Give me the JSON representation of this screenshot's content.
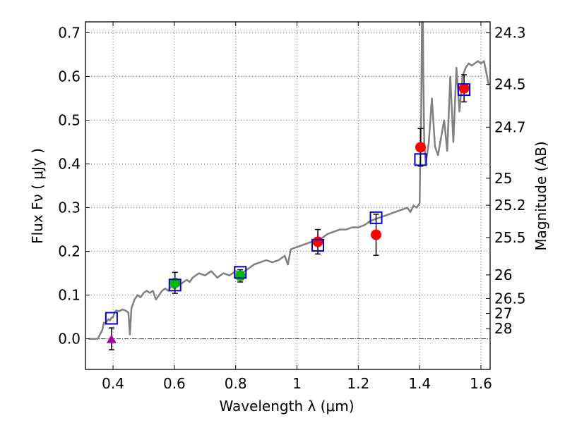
{
  "chart_data": {
    "type": "scatter",
    "xlabel": "Wavelength  λ (μm)",
    "ylabel_left": "Flux  Fν ( μJy )",
    "ylabel_right": "Magnitude (AB)",
    "xlim": [
      0.31,
      1.63
    ],
    "ylim": [
      -0.07,
      0.725
    ],
    "x_ticks": [
      0.4,
      0.6,
      0.8,
      1.0,
      1.2,
      1.4,
      1.6
    ],
    "x_tick_labels": [
      "0.4",
      "0.6",
      "0.8",
      "1",
      "1.2",
      "1.4",
      "1.6"
    ],
    "y_ticks": [
      0.0,
      0.1,
      0.2,
      0.3,
      0.4,
      0.5,
      0.6,
      0.7
    ],
    "y_tick_labels": [
      "0.0",
      "0.1",
      "0.2",
      "0.3",
      "0.4",
      "0.5",
      "0.6",
      "0.7"
    ],
    "right_ticks": [
      {
        "label": "24.3",
        "flux": 0.6998
      },
      {
        "label": "24.5",
        "flux": 0.5821
      },
      {
        "label": "24.7",
        "flux": 0.4842
      },
      {
        "label": "25",
        "flux": 0.3673
      },
      {
        "label": "25.2",
        "flux": 0.3055
      },
      {
        "label": "25.5",
        "flux": 0.2317
      },
      {
        "label": "26",
        "flux": 0.1462
      },
      {
        "label": "26.5",
        "flux": 0.0922
      },
      {
        "label": "27",
        "flux": 0.0582
      },
      {
        "label": "28",
        "flux": 0.0232
      }
    ],
    "grid": true,
    "colors": {
      "model": "#808080",
      "model_box": "#0000cc",
      "red_point": "#ff0000",
      "green_point": "#00bb00",
      "upper_limit": "#aa00aa",
      "errorbar": "#000000",
      "zero_line": "#000000"
    },
    "model_spectrum": {
      "x": [
        0.32,
        0.35,
        0.365,
        0.37,
        0.375,
        0.38,
        0.385,
        0.39,
        0.395,
        0.4,
        0.405,
        0.41,
        0.42,
        0.43,
        0.44,
        0.45,
        0.455,
        0.46,
        0.47,
        0.48,
        0.49,
        0.5,
        0.51,
        0.52,
        0.53,
        0.54,
        0.55,
        0.56,
        0.57,
        0.58,
        0.59,
        0.6,
        0.62,
        0.64,
        0.65,
        0.66,
        0.68,
        0.7,
        0.72,
        0.74,
        0.76,
        0.78,
        0.8,
        0.82,
        0.84,
        0.86,
        0.88,
        0.9,
        0.92,
        0.94,
        0.96,
        0.97,
        0.98,
        1.0,
        1.02,
        1.04,
        1.06,
        1.08,
        1.1,
        1.12,
        1.14,
        1.16,
        1.18,
        1.2,
        1.22,
        1.24,
        1.26,
        1.28,
        1.3,
        1.32,
        1.34,
        1.36,
        1.37,
        1.38,
        1.39,
        1.4,
        1.402,
        1.405,
        1.408,
        1.41,
        1.412,
        1.415,
        1.42,
        1.43,
        1.44,
        1.45,
        1.46,
        1.47,
        1.48,
        1.49,
        1.5,
        1.51,
        1.52,
        1.53,
        1.54,
        1.55,
        1.56,
        1.57,
        1.58,
        1.59,
        1.6,
        1.61,
        1.62,
        1.625
      ],
      "y": [
        0.0,
        0.0,
        0.02,
        0.037,
        0.035,
        0.04,
        0.045,
        0.042,
        0.048,
        0.05,
        0.06,
        0.065,
        0.063,
        0.067,
        0.065,
        0.06,
        0.01,
        0.07,
        0.09,
        0.1,
        0.095,
        0.105,
        0.11,
        0.105,
        0.11,
        0.09,
        0.1,
        0.11,
        0.115,
        0.11,
        0.12,
        0.115,
        0.125,
        0.135,
        0.13,
        0.14,
        0.15,
        0.145,
        0.155,
        0.14,
        0.15,
        0.145,
        0.155,
        0.15,
        0.16,
        0.17,
        0.175,
        0.18,
        0.175,
        0.18,
        0.19,
        0.17,
        0.205,
        0.21,
        0.215,
        0.22,
        0.225,
        0.23,
        0.24,
        0.245,
        0.25,
        0.25,
        0.255,
        0.255,
        0.26,
        0.27,
        0.275,
        0.28,
        0.285,
        0.29,
        0.295,
        0.3,
        0.29,
        0.305,
        0.3,
        0.31,
        0.4,
        0.5,
        0.75,
        0.78,
        0.6,
        0.45,
        0.4,
        0.45,
        0.55,
        0.44,
        0.42,
        0.46,
        0.5,
        0.43,
        0.6,
        0.45,
        0.62,
        0.52,
        0.6,
        0.62,
        0.63,
        0.625,
        0.63,
        0.635,
        0.63,
        0.635,
        0.6,
        0.58
      ]
    },
    "model_boxes": [
      {
        "x": 0.395,
        "y": 0.047
      },
      {
        "x": 0.602,
        "y": 0.123
      },
      {
        "x": 0.815,
        "y": 0.152
      },
      {
        "x": 1.068,
        "y": 0.214
      },
      {
        "x": 1.258,
        "y": 0.277
      },
      {
        "x": 1.403,
        "y": 0.41
      },
      {
        "x": 1.545,
        "y": 0.57
      }
    ],
    "observed_red": [
      {
        "x": 1.068,
        "y": 0.222,
        "yerr": 0.028
      },
      {
        "x": 1.258,
        "y": 0.238,
        "yerr": 0.047
      },
      {
        "x": 1.403,
        "y": 0.438,
        "yerr": 0.043
      },
      {
        "x": 1.545,
        "y": 0.573,
        "yerr": 0.031
      }
    ],
    "observed_green": [
      {
        "x": 0.602,
        "y": 0.128,
        "yerr": 0.024
      },
      {
        "x": 0.815,
        "y": 0.144,
        "yerr": 0.014
      }
    ],
    "upper_limit": [
      {
        "x": 0.395,
        "y": 0.0,
        "yerr": 0.025
      }
    ]
  }
}
